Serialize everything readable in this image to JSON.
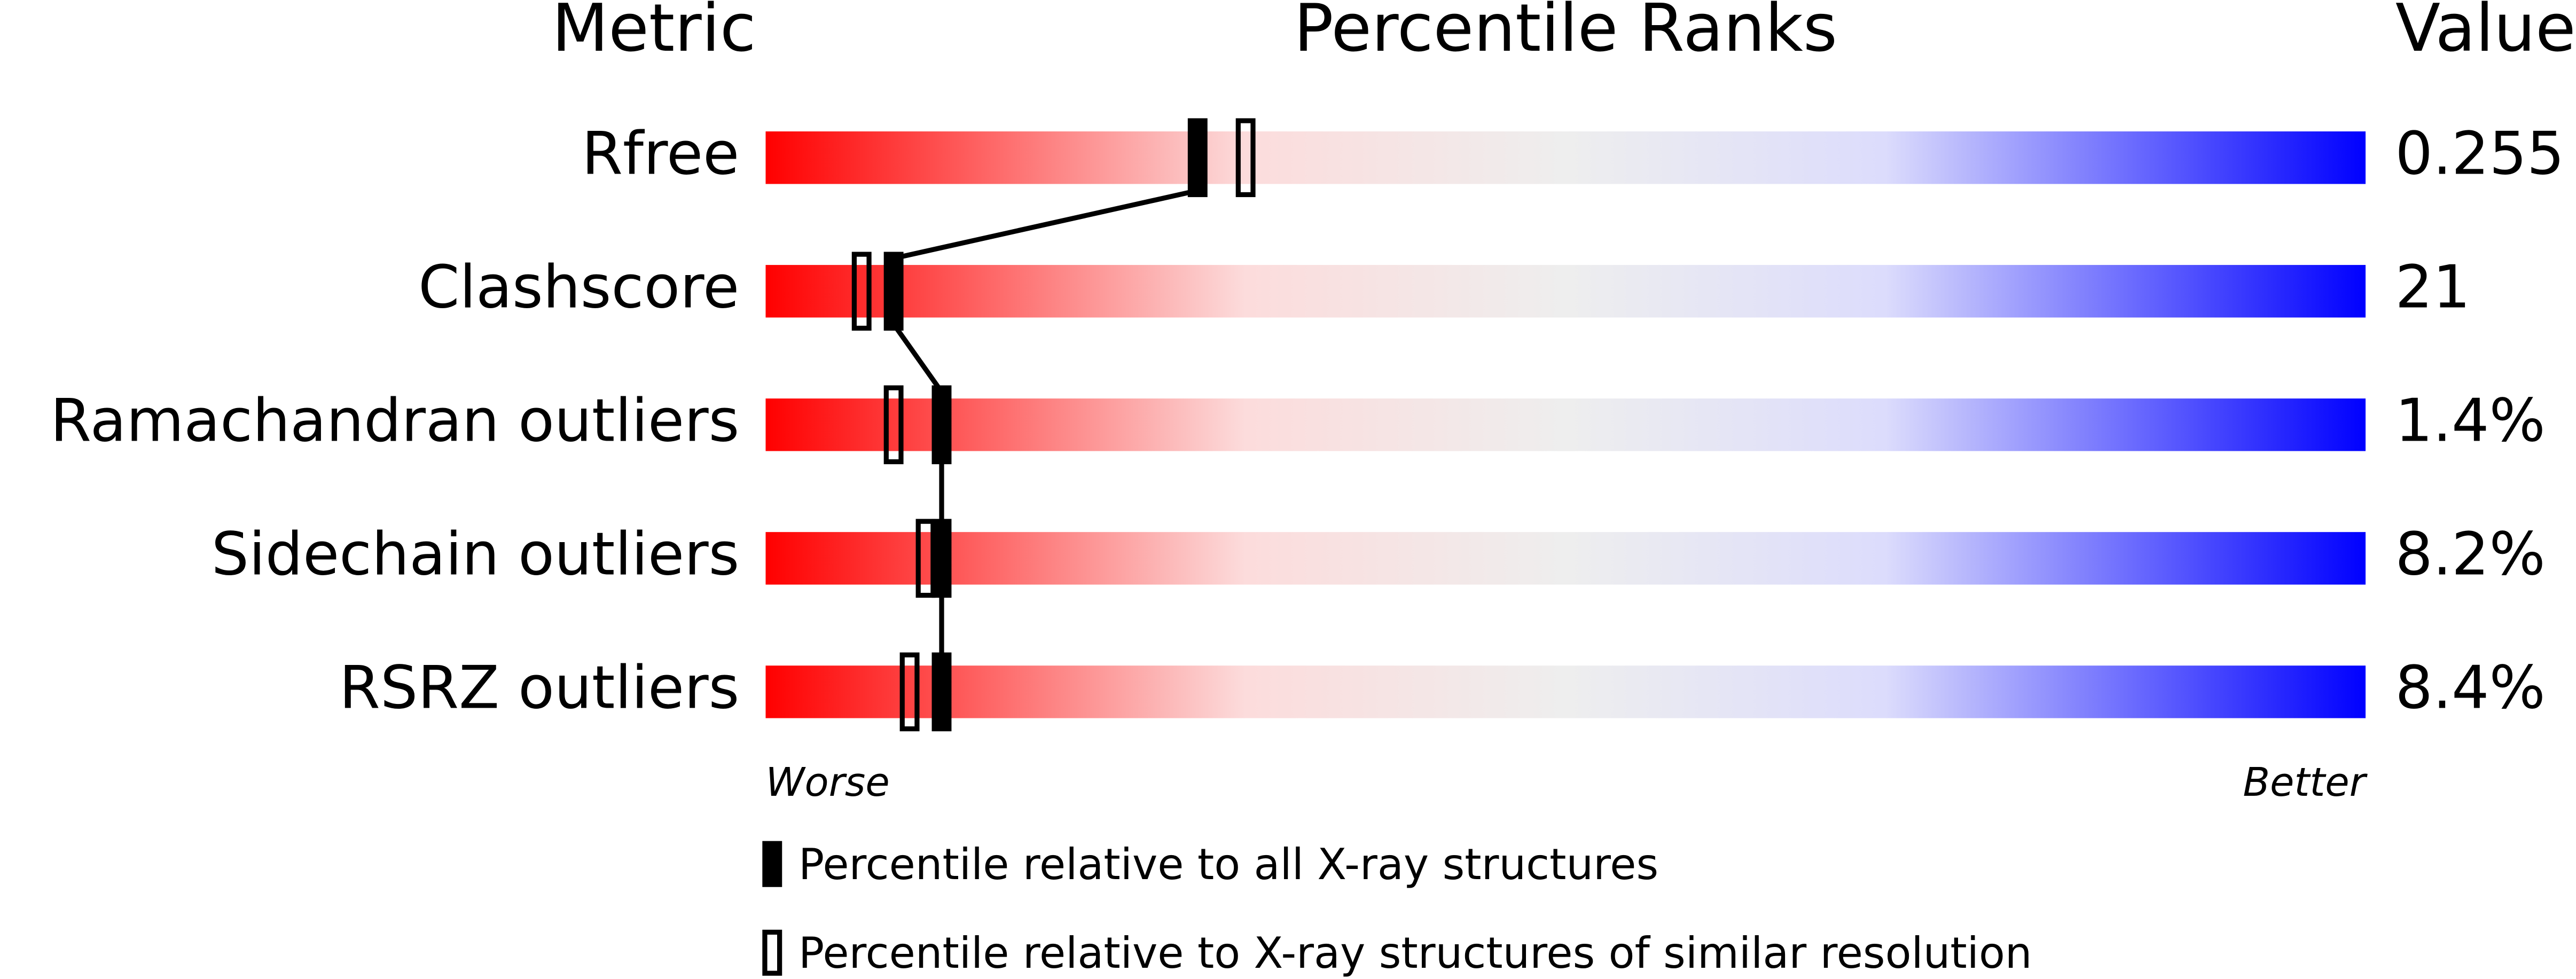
{
  "chart_data": {
    "type": "percentile",
    "headers": [
      "Metric",
      "Percentile Ranks",
      "Value"
    ],
    "categories": [
      "Rfree",
      "Clashscore",
      "Ramachandran outliers",
      "Sidechain outliers",
      "RSRZ outliers"
    ],
    "metric_values": [
      "0.255",
      "21",
      "1.4%",
      "8.2%",
      "8.4%"
    ],
    "xlim": [
      0,
      100
    ],
    "worse_label": "Worse",
    "better_label": "Better",
    "series": [
      {
        "name": "Percentile relative to all X-ray structures",
        "color": "#000000",
        "filled": true,
        "values": [
          27,
          8,
          11,
          11,
          11
        ]
      },
      {
        "name": "Percentile relative to X-ray structures of similar resolution",
        "color": "#000000",
        "filled": false,
        "values": [
          30,
          6,
          8,
          10,
          9
        ]
      }
    ]
  }
}
